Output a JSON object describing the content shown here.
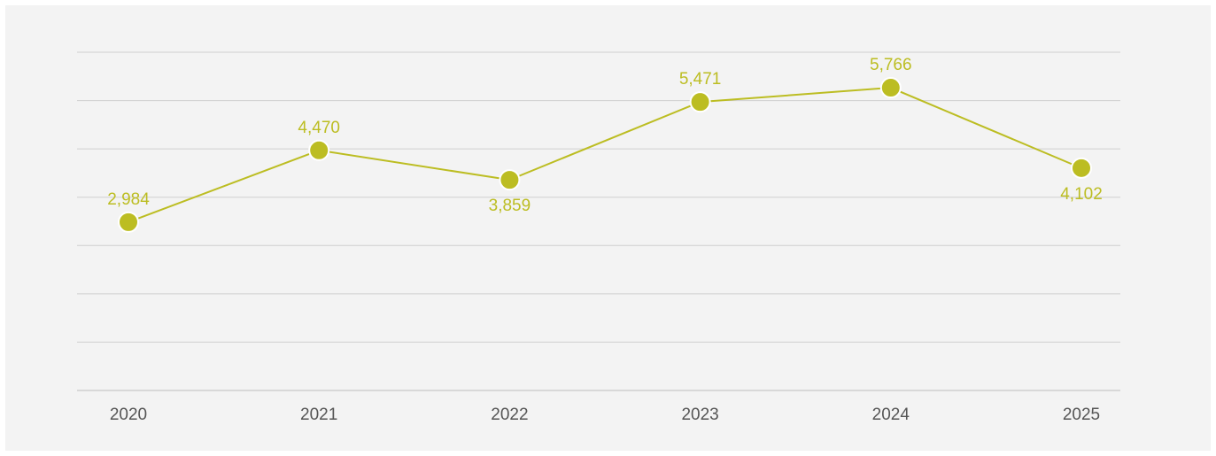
{
  "chart_data": {
    "type": "line",
    "categories": [
      "2020",
      "2021",
      "2022",
      "2023",
      "2024",
      "2025"
    ],
    "series": [
      {
        "values": [
          2984,
          4470,
          3859,
          5471,
          5766,
          4102
        ],
        "labels": [
          "2,984",
          "4,470",
          "3,859",
          "5,471",
          "5,766",
          "4,102"
        ],
        "label_positions": [
          "above",
          "above",
          "below",
          "above",
          "above",
          "below"
        ]
      }
    ],
    "ylim": [
      -500,
      6500
    ],
    "y_gridlines": [
      -500,
      500,
      1500,
      2500,
      3500,
      4500,
      5500,
      6500
    ],
    "grid": true,
    "legend": "none"
  },
  "colors": {
    "series": "#bcbd22",
    "grid": "#cfcfcf",
    "axis": "#bdbdbd",
    "background": "#f3f3f3",
    "marker_stroke": "#ffffff"
  }
}
